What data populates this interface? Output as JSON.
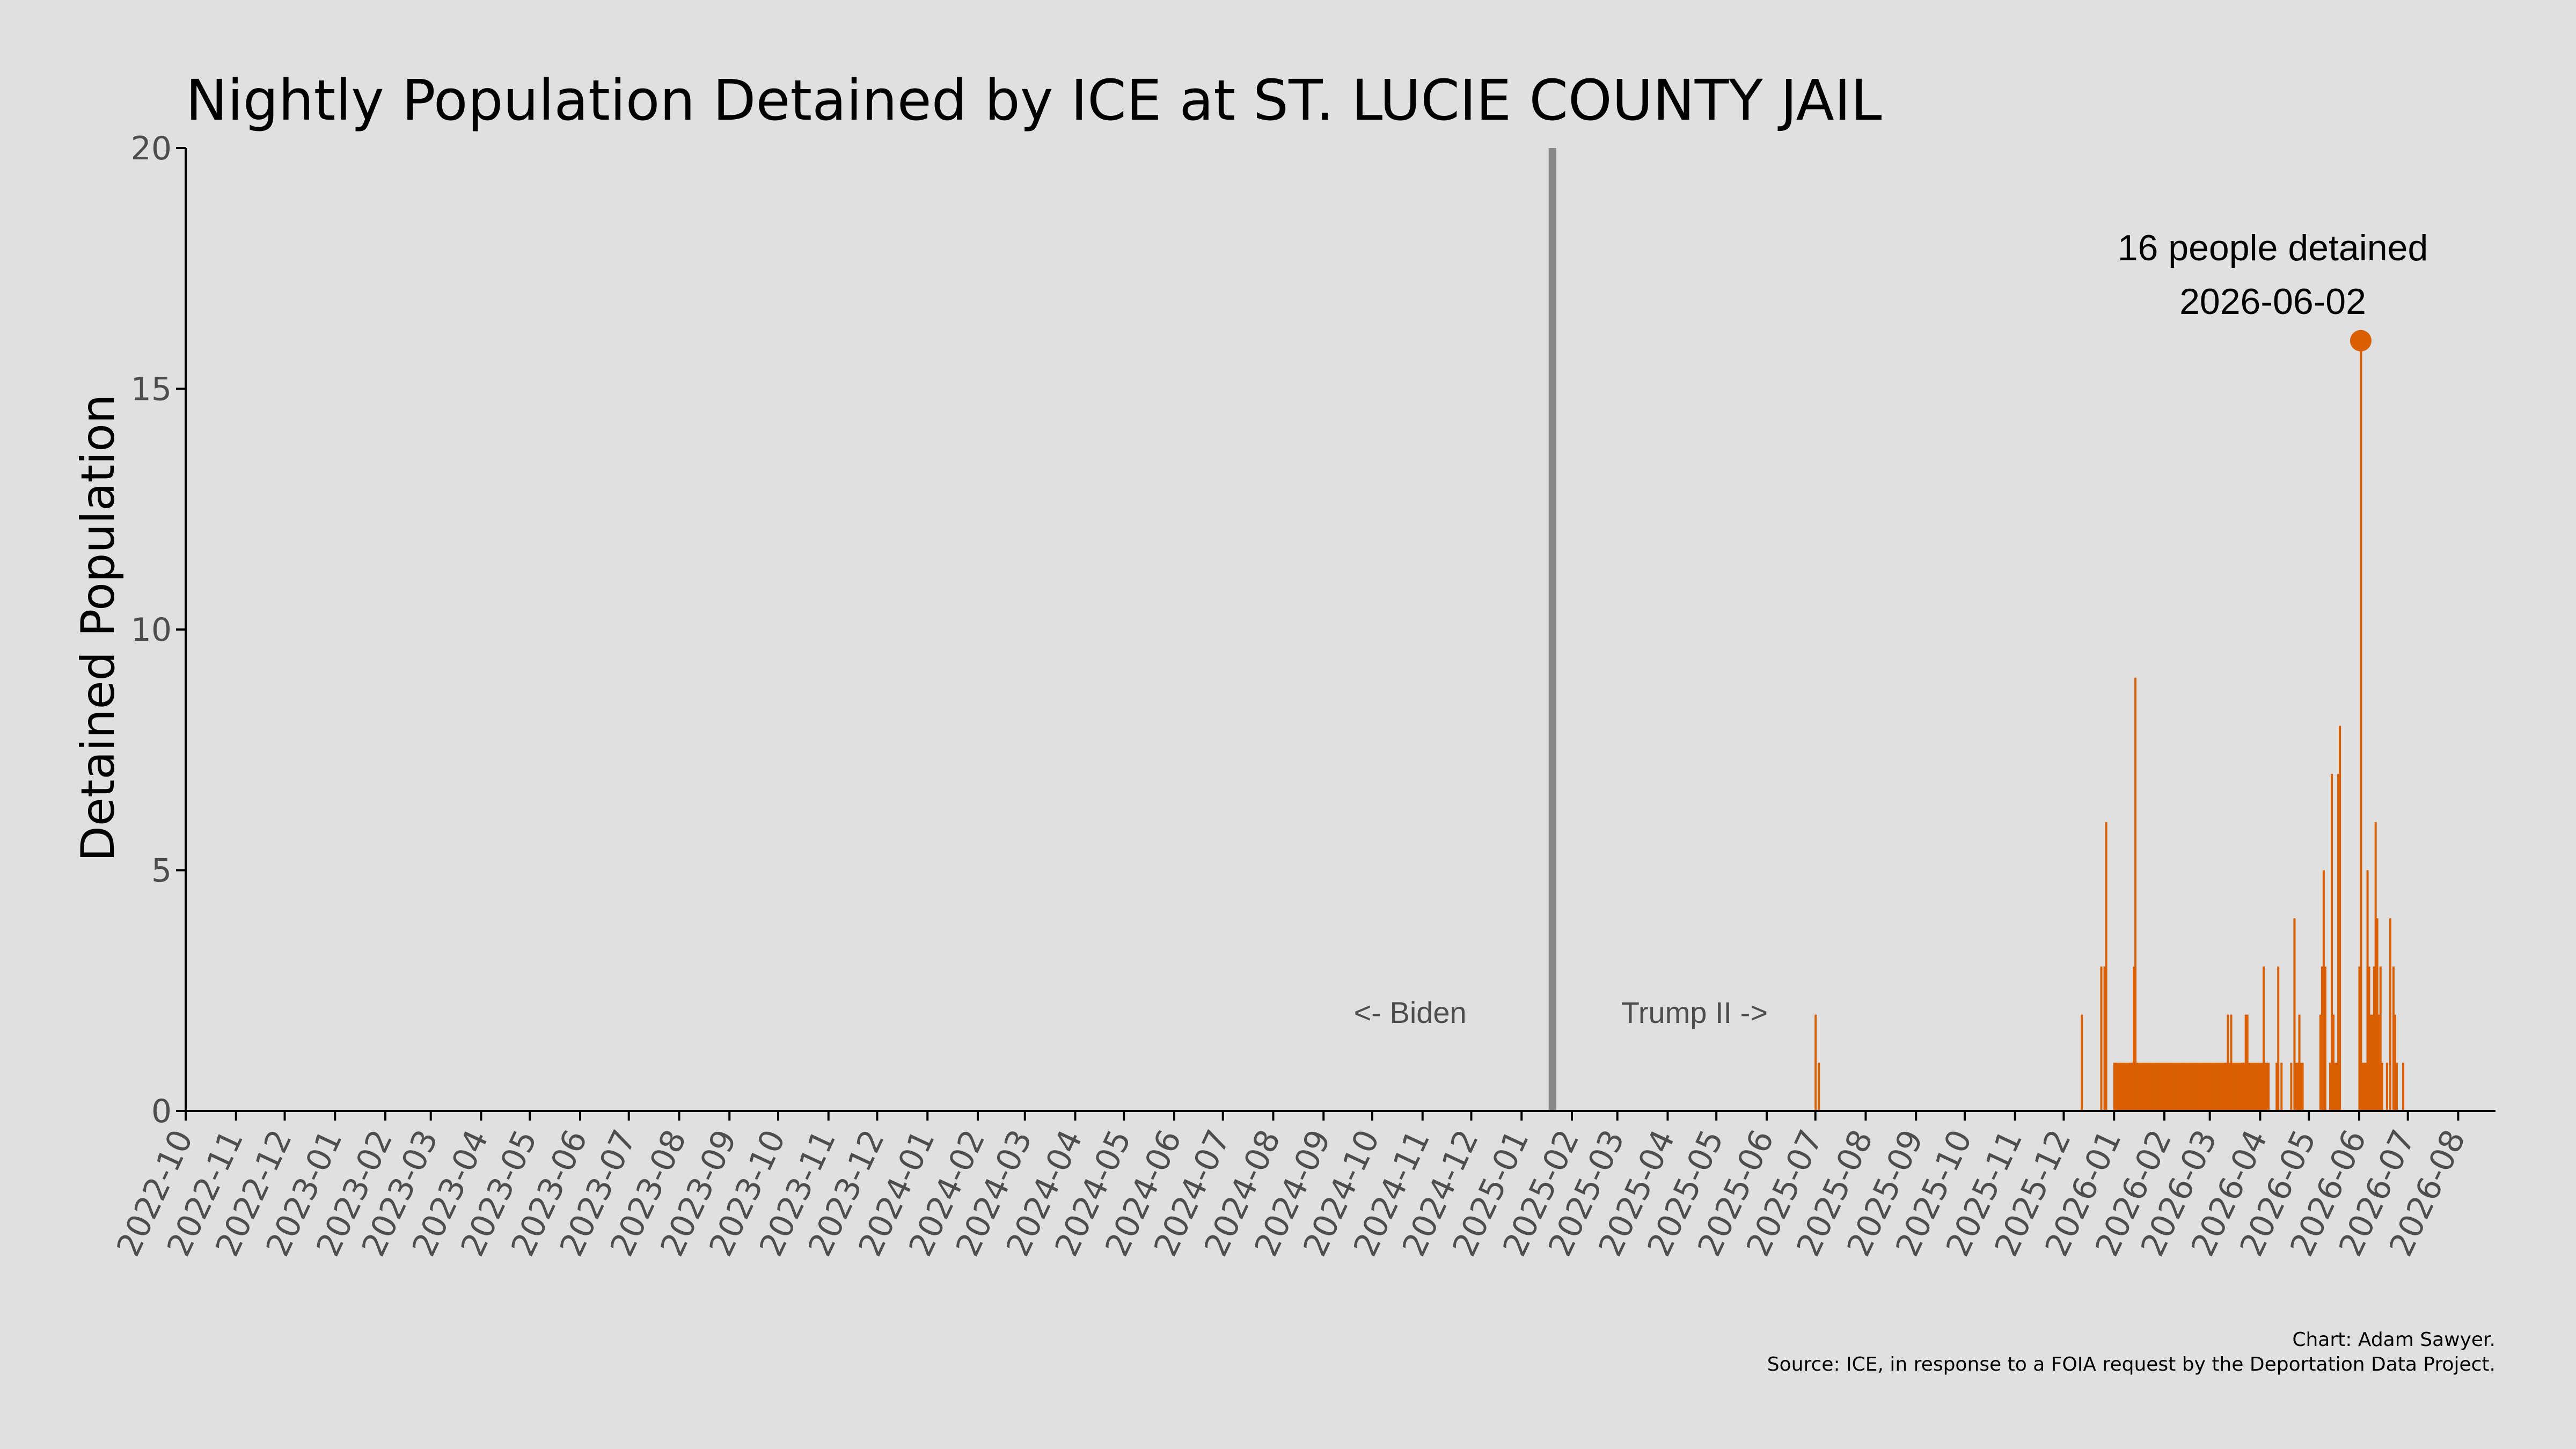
{
  "chart_data": {
    "type": "bar",
    "title": "Nightly Population Detained by ICE at ST. LUCIE COUNTY JAIL",
    "ylabel": "Detained Population",
    "xlabel": "",
    "ylim": [
      0,
      20
    ],
    "yticks": [
      0,
      5,
      10,
      15,
      20
    ],
    "xlim": [
      "2022-10-01",
      "2026-08-24"
    ],
    "xticks": [
      "2022-10",
      "2022-11",
      "2022-12",
      "2023-01",
      "2023-02",
      "2023-03",
      "2023-04",
      "2023-05",
      "2023-06",
      "2023-07",
      "2023-08",
      "2023-09",
      "2023-10",
      "2023-11",
      "2023-12",
      "2024-01",
      "2024-02",
      "2024-03",
      "2024-04",
      "2024-05",
      "2024-06",
      "2024-07",
      "2024-08",
      "2024-09",
      "2024-10",
      "2024-11",
      "2024-12",
      "2025-01",
      "2025-02",
      "2025-03",
      "2025-04",
      "2025-05",
      "2025-06",
      "2025-07",
      "2025-08",
      "2025-09",
      "2025-10",
      "2025-11",
      "2025-12",
      "2026-01",
      "2026-02",
      "2026-03",
      "2026-04",
      "2026-05",
      "2026-06",
      "2026-07",
      "2026-08"
    ],
    "grid": false,
    "series_color": "#d95f02",
    "administration_line": {
      "date": "2025-01-20",
      "color": "#888888",
      "left_label": "<- Biden",
      "right_label": "Trump II ->"
    },
    "peak": {
      "date": "2026-06-02",
      "value": 16,
      "label_line1": "16 people detained",
      "label_line2": "2026-06-02"
    },
    "points": [
      [
        "2025-07-01",
        2
      ],
      [
        "2025-07-03",
        1
      ],
      [
        "2025-12-12",
        2
      ],
      [
        "2025-12-24",
        3
      ],
      [
        "2025-12-26",
        3
      ],
      [
        "2025-12-27",
        6
      ],
      [
        "2026-01-01",
        1
      ],
      [
        "2026-01-02",
        1
      ],
      [
        "2026-01-03",
        1
      ],
      [
        "2026-01-04",
        1
      ],
      [
        "2026-01-05",
        1
      ],
      [
        "2026-01-06",
        1
      ],
      [
        "2026-01-07",
        1
      ],
      [
        "2026-01-08",
        1
      ],
      [
        "2026-01-09",
        1
      ],
      [
        "2026-01-10",
        1
      ],
      [
        "2026-01-11",
        1
      ],
      [
        "2026-01-12",
        1
      ],
      [
        "2026-01-13",
        3
      ],
      [
        "2026-01-14",
        9
      ],
      [
        "2026-01-15",
        1
      ],
      [
        "2026-01-16",
        1
      ],
      [
        "2026-01-17",
        1
      ],
      [
        "2026-01-18",
        1
      ],
      [
        "2026-01-19",
        1
      ],
      [
        "2026-01-20",
        1
      ],
      [
        "2026-01-21",
        1
      ],
      [
        "2026-01-22",
        1
      ],
      [
        "2026-01-23",
        1
      ],
      [
        "2026-01-24",
        1
      ],
      [
        "2026-01-25",
        1
      ],
      [
        "2026-01-26",
        1
      ],
      [
        "2026-01-27",
        1
      ],
      [
        "2026-01-28",
        1
      ],
      [
        "2026-01-29",
        1
      ],
      [
        "2026-01-30",
        1
      ],
      [
        "2026-01-31",
        1
      ],
      [
        "2026-02-01",
        1
      ],
      [
        "2026-02-02",
        1
      ],
      [
        "2026-02-03",
        1
      ],
      [
        "2026-02-04",
        1
      ],
      [
        "2026-02-05",
        1
      ],
      [
        "2026-02-06",
        1
      ],
      [
        "2026-02-07",
        1
      ],
      [
        "2026-02-08",
        1
      ],
      [
        "2026-02-09",
        1
      ],
      [
        "2026-02-10",
        1
      ],
      [
        "2026-02-11",
        1
      ],
      [
        "2026-02-12",
        1
      ],
      [
        "2026-02-13",
        1
      ],
      [
        "2026-02-14",
        1
      ],
      [
        "2026-02-15",
        1
      ],
      [
        "2026-02-16",
        1
      ],
      [
        "2026-02-17",
        1
      ],
      [
        "2026-02-18",
        1
      ],
      [
        "2026-02-19",
        1
      ],
      [
        "2026-02-20",
        1
      ],
      [
        "2026-02-21",
        1
      ],
      [
        "2026-02-22",
        1
      ],
      [
        "2026-02-23",
        1
      ],
      [
        "2026-02-24",
        1
      ],
      [
        "2026-02-25",
        1
      ],
      [
        "2026-02-26",
        1
      ],
      [
        "2026-02-27",
        1
      ],
      [
        "2026-02-28",
        1
      ],
      [
        "2026-03-01",
        1
      ],
      [
        "2026-03-02",
        1
      ],
      [
        "2026-03-03",
        1
      ],
      [
        "2026-03-04",
        1
      ],
      [
        "2026-03-05",
        1
      ],
      [
        "2026-03-06",
        1
      ],
      [
        "2026-03-07",
        1
      ],
      [
        "2026-03-08",
        1
      ],
      [
        "2026-03-09",
        1
      ],
      [
        "2026-03-10",
        1
      ],
      [
        "2026-03-11",
        1
      ],
      [
        "2026-03-12",
        2
      ],
      [
        "2026-03-13",
        1
      ],
      [
        "2026-03-14",
        2
      ],
      [
        "2026-03-15",
        1
      ],
      [
        "2026-03-16",
        1
      ],
      [
        "2026-03-17",
        1
      ],
      [
        "2026-03-18",
        1
      ],
      [
        "2026-03-19",
        1
      ],
      [
        "2026-03-20",
        1
      ],
      [
        "2026-03-21",
        1
      ],
      [
        "2026-03-22",
        1
      ],
      [
        "2026-03-23",
        2
      ],
      [
        "2026-03-24",
        2
      ],
      [
        "2026-03-25",
        1
      ],
      [
        "2026-03-26",
        1
      ],
      [
        "2026-03-27",
        1
      ],
      [
        "2026-03-28",
        1
      ],
      [
        "2026-03-29",
        1
      ],
      [
        "2026-03-30",
        1
      ],
      [
        "2026-03-31",
        1
      ],
      [
        "2026-04-01",
        1
      ],
      [
        "2026-04-02",
        1
      ],
      [
        "2026-04-03",
        3
      ],
      [
        "2026-04-04",
        1
      ],
      [
        "2026-04-05",
        1
      ],
      [
        "2026-04-06",
        1
      ],
      [
        "2026-04-11",
        1
      ],
      [
        "2026-04-12",
        3
      ],
      [
        "2026-04-14",
        1
      ],
      [
        "2026-04-20",
        1
      ],
      [
        "2026-04-22",
        4
      ],
      [
        "2026-04-23",
        1
      ],
      [
        "2026-04-24",
        1
      ],
      [
        "2026-04-25",
        2
      ],
      [
        "2026-04-26",
        1
      ],
      [
        "2026-04-27",
        1
      ],
      [
        "2026-05-08",
        2
      ],
      [
        "2026-05-09",
        3
      ],
      [
        "2026-05-10",
        5
      ],
      [
        "2026-05-11",
        3
      ],
      [
        "2026-05-14",
        1
      ],
      [
        "2026-05-15",
        7
      ],
      [
        "2026-05-16",
        2
      ],
      [
        "2026-05-17",
        1
      ],
      [
        "2026-05-18",
        1
      ],
      [
        "2026-05-19",
        7
      ],
      [
        "2026-05-20",
        8
      ],
      [
        "2026-06-01",
        3
      ],
      [
        "2026-06-02",
        16
      ],
      [
        "2026-06-03",
        1
      ],
      [
        "2026-06-04",
        1
      ],
      [
        "2026-06-05",
        1
      ],
      [
        "2026-06-06",
        5
      ],
      [
        "2026-06-07",
        3
      ],
      [
        "2026-06-08",
        2
      ],
      [
        "2026-06-09",
        2
      ],
      [
        "2026-06-10",
        3
      ],
      [
        "2026-06-11",
        6
      ],
      [
        "2026-06-12",
        4
      ],
      [
        "2026-06-13",
        2
      ],
      [
        "2026-06-14",
        3
      ],
      [
        "2026-06-15",
        1
      ],
      [
        "2026-06-18",
        1
      ],
      [
        "2026-06-20",
        4
      ],
      [
        "2026-06-22",
        3
      ],
      [
        "2026-06-23",
        2
      ],
      [
        "2026-06-24",
        1
      ],
      [
        "2026-06-28",
        1
      ]
    ]
  },
  "caption": {
    "credit": "Chart: Adam Sawyer.",
    "source": "Source: ICE, in response to a FOIA request by the Deportation Data Project."
  }
}
